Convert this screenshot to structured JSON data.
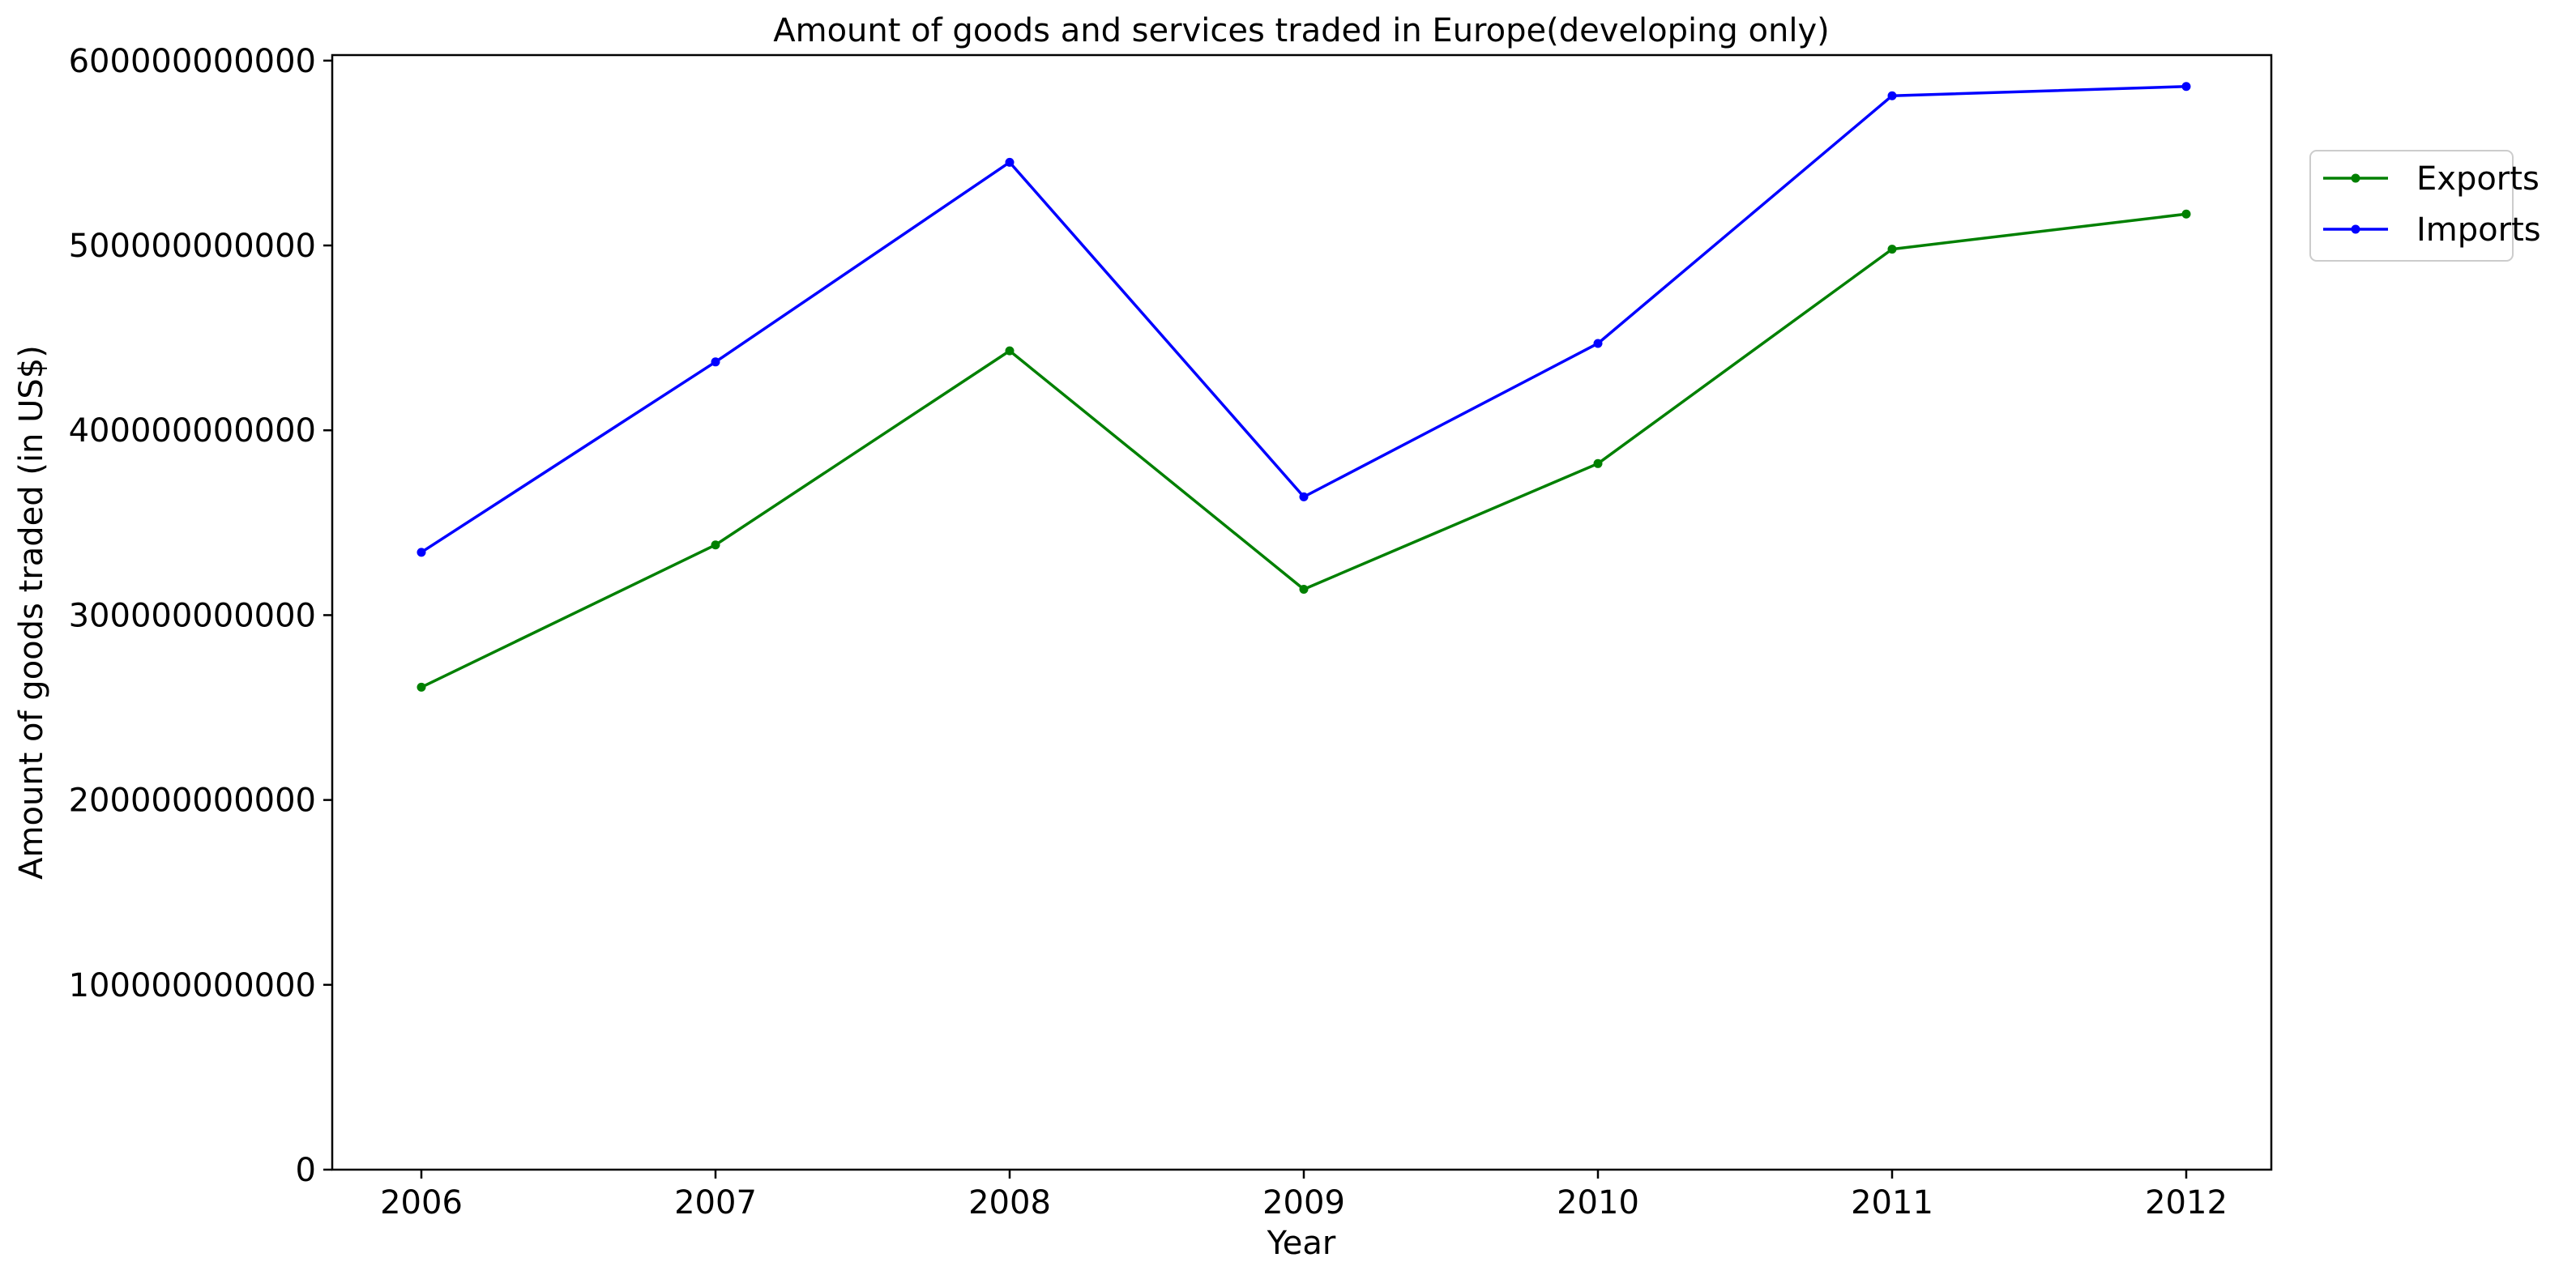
{
  "chart_data": {
    "type": "line",
    "title": "Amount of goods and services traded in Europe(developing only)",
    "xlabel": "Year",
    "ylabel": "Amount of goods traded (in US$)",
    "categories": [
      "2006",
      "2007",
      "2008",
      "2009",
      "2010",
      "2011",
      "2012"
    ],
    "y_ticks": [
      {
        "value": 0,
        "label": "0"
      },
      {
        "value": 100000000000,
        "label": "100000000000"
      },
      {
        "value": 200000000000,
        "label": "200000000000"
      },
      {
        "value": 300000000000,
        "label": "300000000000"
      },
      {
        "value": 400000000000,
        "label": "400000000000"
      },
      {
        "value": 500000000000,
        "label": "500000000000"
      },
      {
        "value": 600000000000,
        "label": "600000000000"
      }
    ],
    "ylim": [
      0,
      603000000000
    ],
    "grid": false,
    "legend_position": "outside-right-top",
    "series": [
      {
        "name": "Exports",
        "color": "#008000",
        "values": [
          261000000000,
          338000000000,
          443000000000,
          314000000000,
          382000000000,
          498000000000,
          517000000000
        ]
      },
      {
        "name": "Imports",
        "color": "#0000ff",
        "values": [
          334000000000,
          437000000000,
          545000000000,
          364000000000,
          447000000000,
          581000000000,
          586000000000
        ]
      }
    ]
  }
}
